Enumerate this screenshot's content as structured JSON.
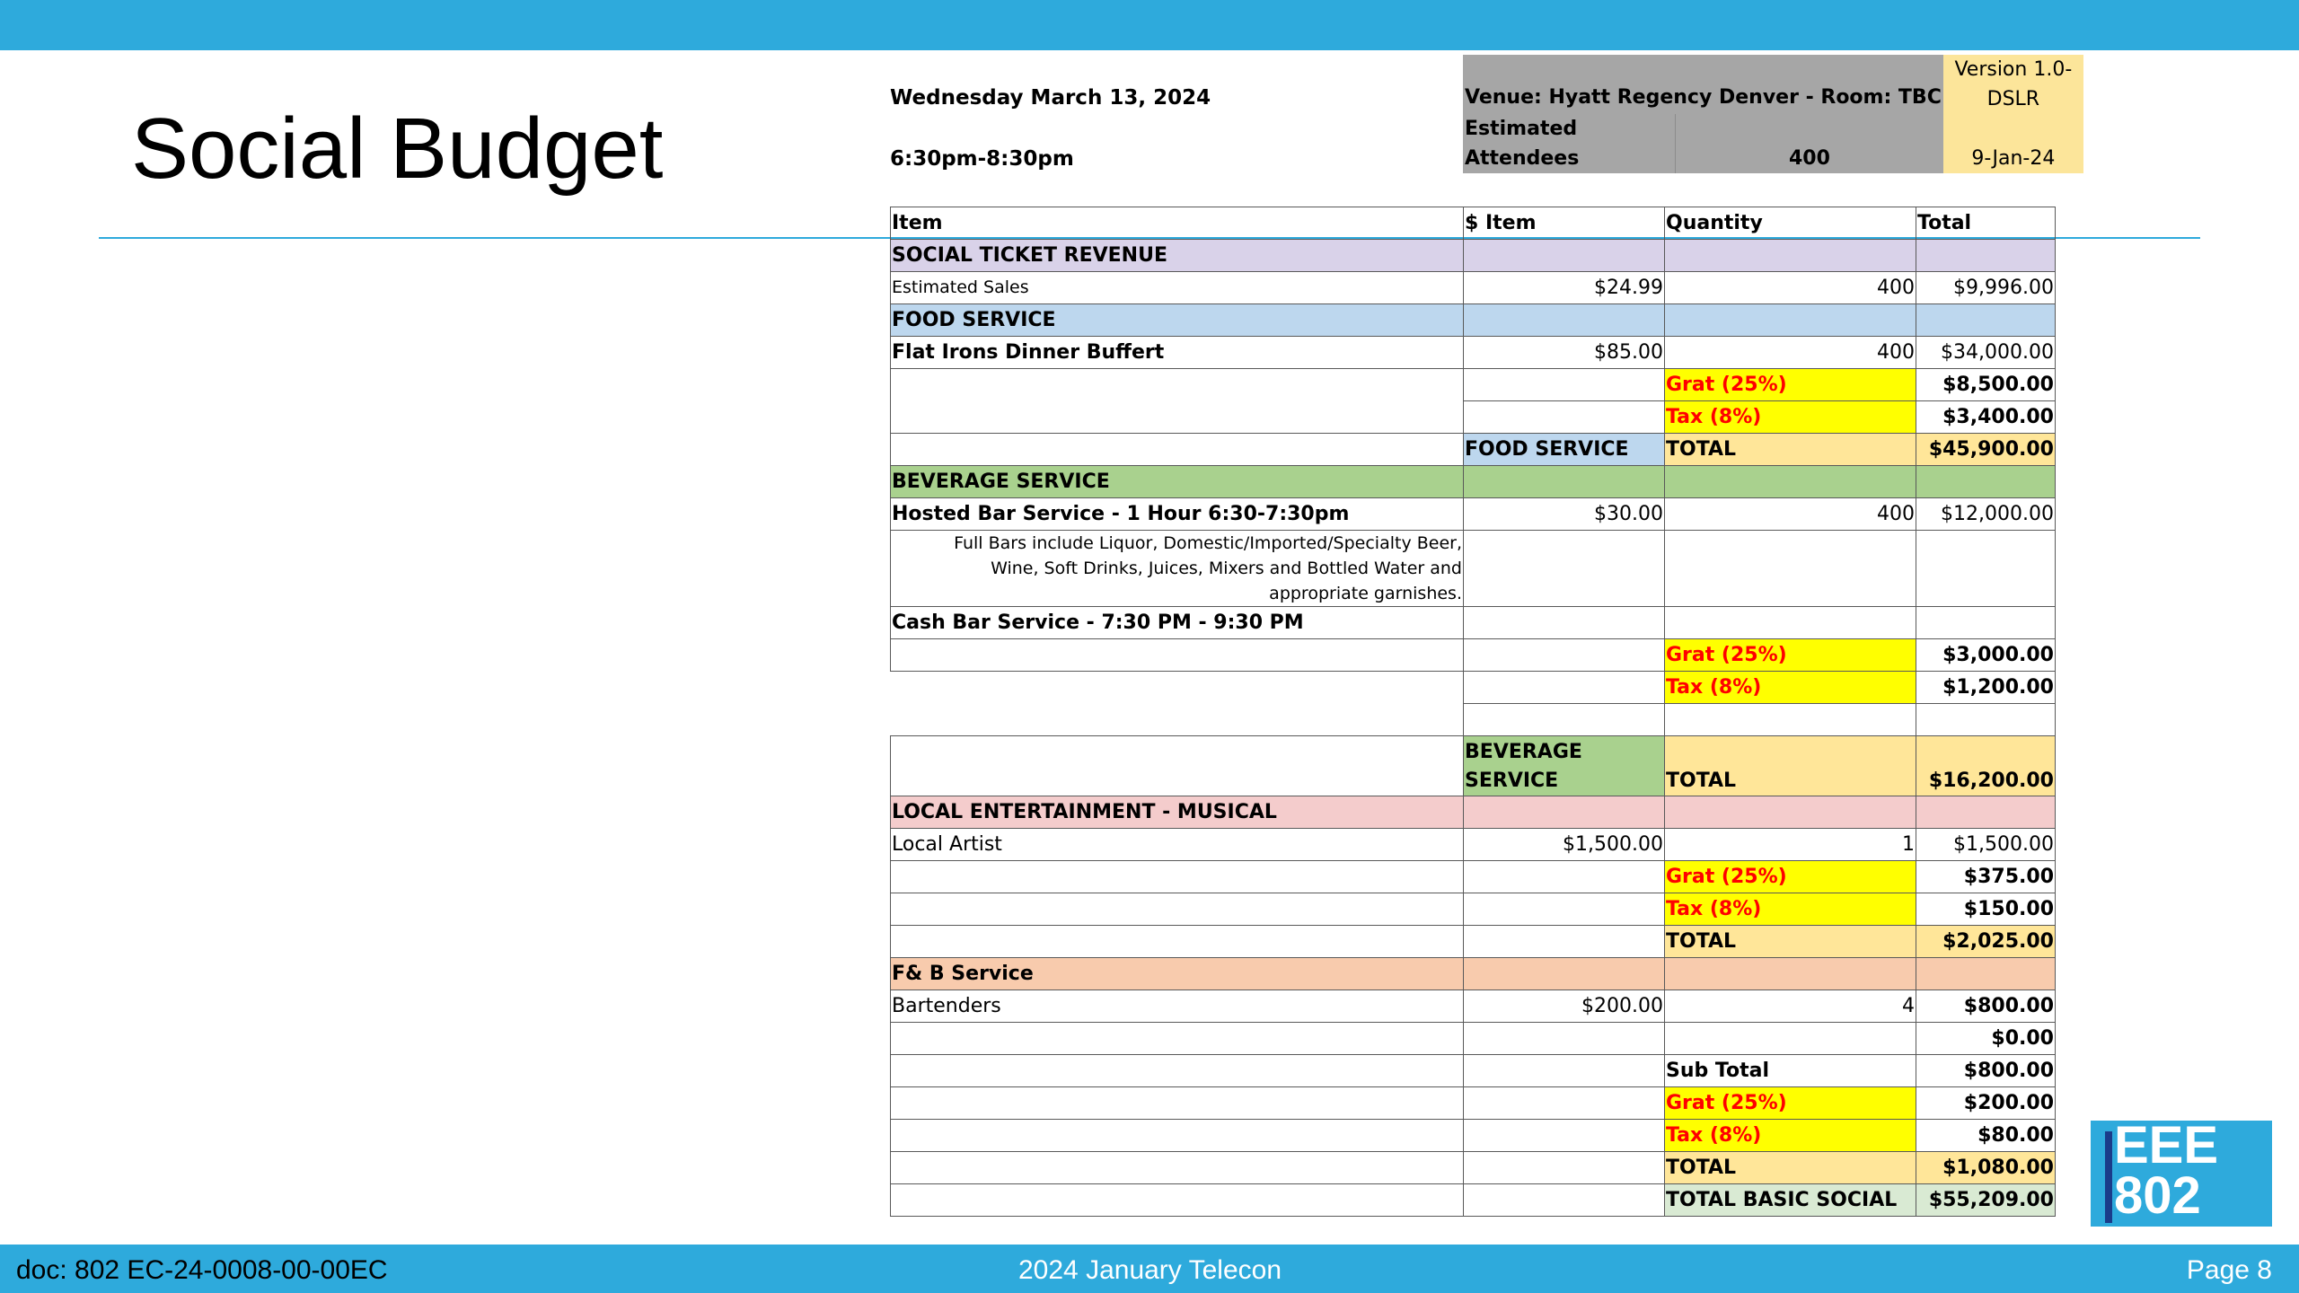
{
  "slide": {
    "title": "Social Budget",
    "date": "Wednesday March 13, 2024",
    "time": "6:30pm-8:30pm"
  },
  "info": {
    "venue": "Venue: Hyatt Regency Denver - Room: TBC",
    "version_line1": "Version 1.0-",
    "version_line2": "DSLR",
    "attendees_label": "Estimated Attendees",
    "attendees_value": "400",
    "version_date": "9-Jan-24"
  },
  "table": {
    "headers": [
      "Item",
      "$ Item",
      "Quantity",
      "Total"
    ],
    "social_ticket": {
      "section": "SOCIAL TICKET REVENUE",
      "sales_label": "Estimated Sales",
      "sales_price": "$24.99",
      "sales_qty": "400",
      "sales_total": "$9,996.00"
    },
    "food": {
      "section": "FOOD SERVICE",
      "item_label": "Flat Irons Dinner Buffert",
      "item_price": "$85.00",
      "item_qty": "400",
      "item_total": "$34,000.00",
      "grat_label": "Grat (25%)",
      "grat_value": "$8,500.00",
      "tax_label": "Tax (8%)",
      "tax_value": "$3,400.00",
      "total_section": "FOOD SERVICE",
      "total_label": "TOTAL",
      "total_value": "$45,900.00"
    },
    "beverage": {
      "section": "BEVERAGE SERVICE",
      "hosted_label": "Hosted Bar Service - 1 Hour 6:30-7:30pm",
      "hosted_price": "$30.00",
      "hosted_qty": "400",
      "hosted_total": "$12,000.00",
      "note": "Full Bars include Liquor, Domestic/Imported/Specialty Beer, Wine, Soft Drinks, Juices, Mixers and Bottled Water and appropriate garnishes.",
      "cash_label": "Cash Bar Service - 7:30 PM - 9:30 PM",
      "grat_label": "Grat (25%)",
      "grat_value": "$3,000.00",
      "tax_label": "Tax (8%)",
      "tax_value": "$1,200.00",
      "total_section": "BEVERAGE SERVICE",
      "total_label": "TOTAL",
      "total_value": "$16,200.00"
    },
    "entertainment": {
      "section": "LOCAL ENTERTAINMENT - MUSICAL",
      "artist_label": "Local Artist",
      "artist_price": "$1,500.00",
      "artist_qty": "1",
      "artist_total": "$1,500.00",
      "grat_label": "Grat (25%)",
      "grat_value": "$375.00",
      "tax_label": "Tax (8%)",
      "tax_value": "$150.00",
      "total_label": "TOTAL",
      "total_value": "$2,025.00"
    },
    "fb": {
      "section": "F& B Service",
      "bartenders_label": "Bartenders",
      "bartenders_price": "$200.00",
      "bartenders_qty": "4",
      "bartenders_total": "$800.00",
      "zero_total": "$0.00",
      "subtotal_label": "Sub Total",
      "subtotal_value": "$800.00",
      "grat_label": "Grat (25%)",
      "grat_value": "$200.00",
      "tax_label": "Tax (8%)",
      "tax_value": "$80.00",
      "total_label": "TOTAL",
      "total_value": "$1,080.00",
      "grand_label": "TOTAL BASIC SOCIAL",
      "grand_value": "$55,209.00"
    }
  },
  "logo": {
    "line1": "EEE",
    "line2": "802"
  },
  "footer": {
    "doc": "doc: 802 EC-24-0008-00-00EC",
    "title": "2024 January Telecon",
    "page": "Page 8"
  }
}
